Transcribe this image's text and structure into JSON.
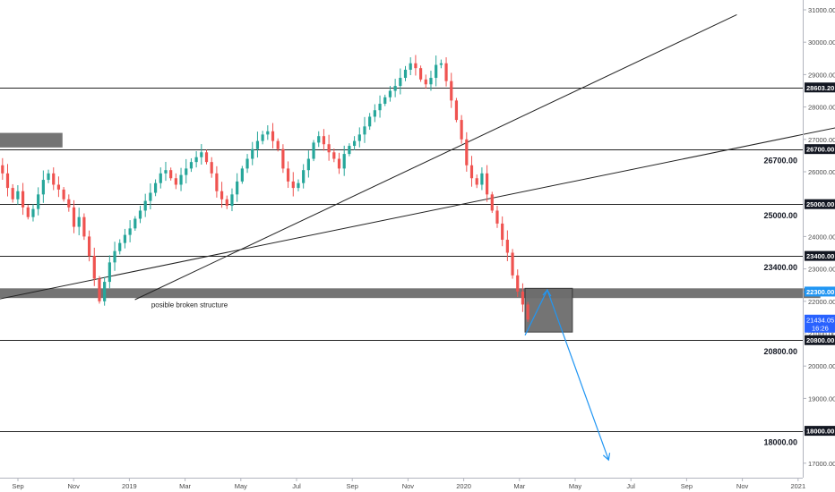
{
  "chart_data": {
    "type": "candlestick",
    "y_axis": {
      "position": "right",
      "ticks": [
        "31000.00",
        "30000.00",
        "29000.00",
        "28000.00",
        "27000.00",
        "26000.00",
        "25000.00",
        "24000.00",
        "23000.00",
        "22000.00",
        "21000.00",
        "20000.00",
        "19000.00",
        "18000.00",
        "17000.00"
      ],
      "tick_values": [
        31000,
        30000,
        29000,
        28000,
        27000,
        26000,
        25000,
        24000,
        23000,
        22000,
        21000,
        20000,
        19000,
        18000,
        17000
      ]
    },
    "x_axis": {
      "ticks": [
        "Sep",
        "Nov",
        "2019",
        "Mar",
        "May",
        "Jul",
        "Sep",
        "Nov",
        "2020",
        "Mar",
        "May",
        "Jul",
        "Sep",
        "Nov",
        "2021"
      ],
      "tick_months": [
        8,
        10,
        12,
        14,
        16,
        18,
        20,
        22,
        24,
        26,
        28,
        30,
        32,
        34,
        36
      ]
    },
    "horizontal_levels": [
      {
        "value": 28603.2,
        "label": "28603.20",
        "style": "price-tag"
      },
      {
        "value": 26700.0,
        "label": "26700.00",
        "style": "price-tag"
      },
      {
        "value": 25000.0,
        "label": "25000.00",
        "style": "price-tag"
      },
      {
        "value": 23400.0,
        "label": "23400.00",
        "style": "price-tag"
      },
      {
        "value": 20800.0,
        "label": "20800.00",
        "style": "price-tag"
      },
      {
        "value": 18000.0,
        "label": "18000.00",
        "style": "price-tag"
      }
    ],
    "level_annotations": [
      {
        "value": 26700,
        "text": "26700.00"
      },
      {
        "value": 25000,
        "text": "25000.00"
      },
      {
        "value": 23400,
        "text": "23400.00"
      },
      {
        "value": 20800,
        "text": "20800.00"
      },
      {
        "value": 18000,
        "text": "18000.00"
      }
    ],
    "zones": [
      {
        "x_start": 5.8,
        "x_end": 9.6,
        "y_low": 26750,
        "y_high": 27200,
        "color": "#6d6d6d"
      },
      {
        "x_start": 5.8,
        "x_end": 36.8,
        "y_low": 22100,
        "y_high": 22400,
        "color": "#6d6d6d"
      },
      {
        "x_start": 26.2,
        "x_end": 27.9,
        "y_low": 21050,
        "y_high": 22400,
        "color": "#6d6d6d"
      }
    ],
    "zone_tag": {
      "value": 22300.0,
      "label": "22300.00",
      "color": "#2196f3"
    },
    "current_price": {
      "value": 21434.05,
      "label": "21434.05",
      "countdown": "16:26",
      "color": "#2962ff"
    },
    "trendlines": [
      {
        "x1": 5.8,
        "y1": 21800,
        "x2": 39.0,
        "y2": 27650
      },
      {
        "x1": 12.2,
        "y1": 22050,
        "x2": 33.8,
        "y2": 30850
      }
    ],
    "projection_arrow": {
      "points": [
        [
          26.2,
          20950
        ],
        [
          27.0,
          22350
        ],
        [
          29.2,
          17100
        ]
      ],
      "color": "#2196f3"
    },
    "annotation": {
      "text": "posible broken structure",
      "x": 12.4,
      "y": 21900
    },
    "closes": [
      25850,
      26050,
      26250,
      26200,
      26500,
      26700,
      26550,
      26300,
      26200,
      25950,
      25500,
      25150,
      25400,
      24900,
      24600,
      24850,
      25300,
      25750,
      25950,
      25600,
      25450,
      25150,
      24900,
      24300,
      24600,
      24000,
      23400,
      22700,
      22000,
      22600,
      23200,
      23550,
      23800,
      24050,
      24250,
      24550,
      24800,
      25100,
      25350,
      25650,
      25950,
      26050,
      25800,
      25600,
      25900,
      26100,
      26300,
      26450,
      26600,
      26300,
      25950,
      25400,
      25150,
      24950,
      25300,
      25700,
      26100,
      26400,
      26700,
      26950,
      27150,
      27250,
      26950,
      26700,
      26100,
      25700,
      25500,
      25650,
      26050,
      26400,
      26900,
      27100,
      26850,
      26600,
      26400,
      26100,
      26550,
      26800,
      26950,
      27150,
      27400,
      27700,
      27900,
      28100,
      28300,
      28500,
      28650,
      28900,
      29150,
      29350,
      29200,
      28850,
      28700,
      28900,
      29300,
      29350,
      28800,
      28200,
      27600,
      27000,
      26200,
      25800,
      25600,
      25950,
      25300,
      24800,
      24400,
      23900,
      23500,
      22800,
      22300,
      21900,
      21434
    ]
  }
}
